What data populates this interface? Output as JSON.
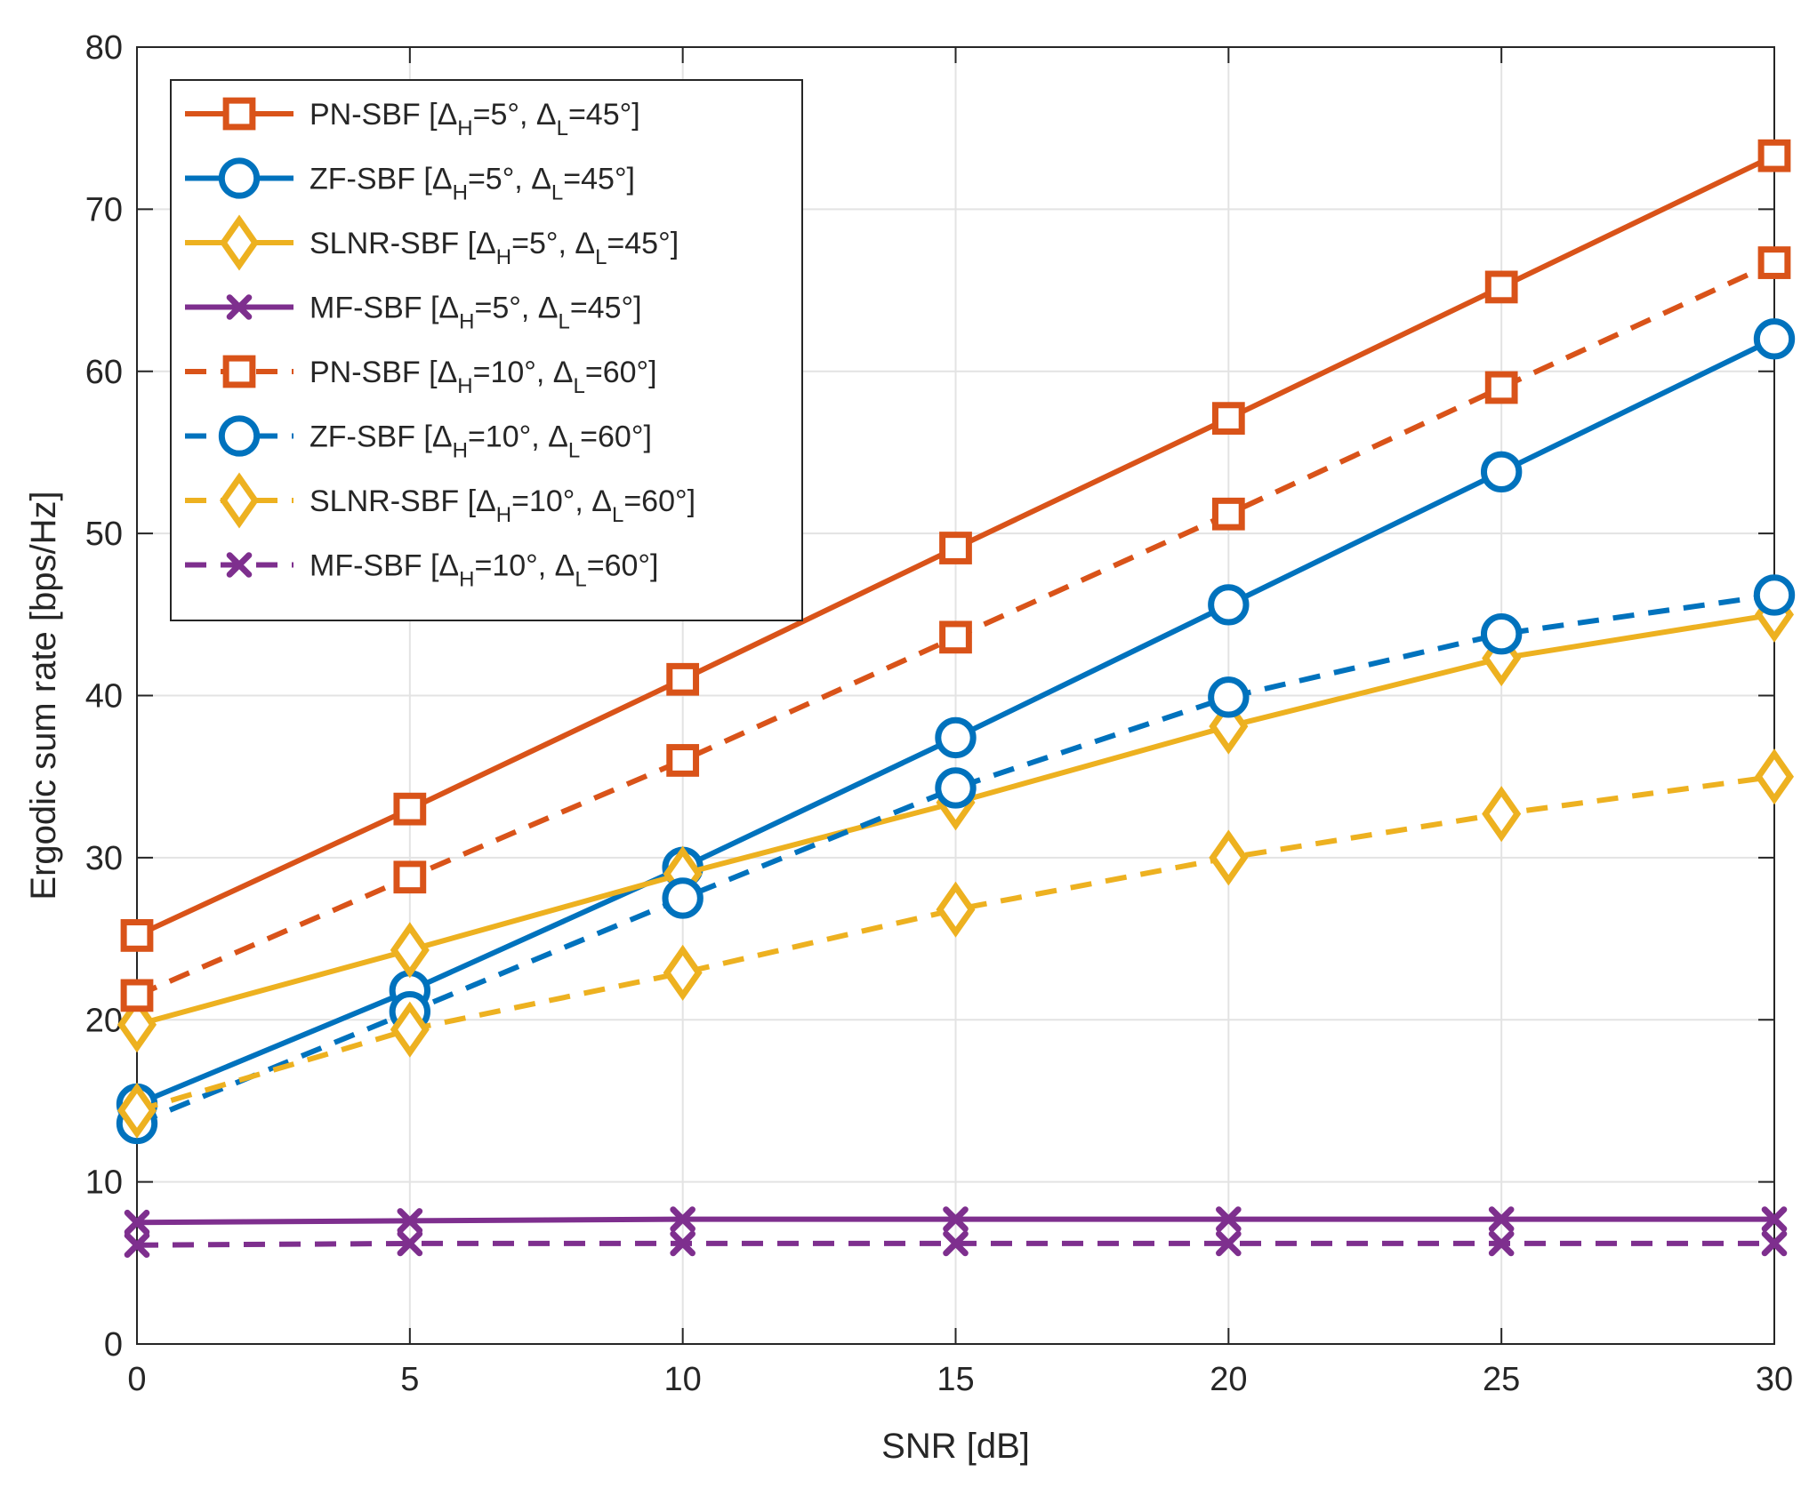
{
  "chart_data": {
    "type": "line",
    "title": "",
    "xlabel": "SNR [dB]",
    "ylabel": "Ergodic sum rate [bps/Hz]",
    "xlim": [
      0,
      30
    ],
    "ylim": [
      0,
      80
    ],
    "xticks": [
      0,
      5,
      10,
      15,
      20,
      25,
      30
    ],
    "yticks": [
      0,
      10,
      20,
      30,
      40,
      50,
      60,
      70,
      80
    ],
    "grid": true,
    "legend_position": "top-left",
    "x": [
      0,
      5,
      10,
      15,
      20,
      25,
      30
    ],
    "series": [
      {
        "name": "PN-SBF [ΔH=5°, ΔL=45°]",
        "legend": {
          "pre": "PN-SBF [",
          "h": "=5°, ",
          "l": "=45°]"
        },
        "color": "#D95319",
        "dash": "solid",
        "marker": "square",
        "values": [
          25.2,
          33.0,
          41.0,
          49.1,
          57.1,
          65.2,
          73.3
        ]
      },
      {
        "name": "ZF-SBF [ΔH=5°, ΔL=45°]",
        "legend": {
          "pre": "ZF-SBF [",
          "h": "=5°, ",
          "l": "=45°]"
        },
        "color": "#0072BD",
        "dash": "solid",
        "marker": "circle",
        "values": [
          14.8,
          21.8,
          29.4,
          37.4,
          45.6,
          53.8,
          62.0
        ]
      },
      {
        "name": "SLNR-SBF [ΔH=5°, ΔL=45°]",
        "legend": {
          "pre": "SLNR-SBF [",
          "h": "=5°, ",
          "l": "=45°]"
        },
        "color": "#EDB120",
        "dash": "solid",
        "marker": "diamond",
        "values": [
          19.7,
          24.3,
          29.0,
          33.4,
          38.1,
          42.3,
          45.0
        ]
      },
      {
        "name": "MF-SBF [ΔH=5°, ΔL=45°]",
        "legend": {
          "pre": "MF-SBF [",
          "h": "=5°, ",
          "l": "=45°]"
        },
        "color": "#7E2F8E",
        "dash": "solid",
        "marker": "x",
        "values": [
          7.5,
          7.6,
          7.7,
          7.7,
          7.7,
          7.7,
          7.7
        ]
      },
      {
        "name": "PN-SBF [ΔH=10°, ΔL=60°]",
        "legend": {
          "pre": "PN-SBF [",
          "h": "=10°, ",
          "l": "=60°]"
        },
        "color": "#D95319",
        "dash": "dashed",
        "marker": "square",
        "values": [
          21.5,
          28.8,
          36.0,
          43.6,
          51.2,
          59.0,
          66.7
        ]
      },
      {
        "name": "ZF-SBF [ΔH=10°, ΔL=60°]",
        "legend": {
          "pre": "ZF-SBF [",
          "h": "=10°, ",
          "l": "=60°]"
        },
        "color": "#0072BD",
        "dash": "dashed",
        "marker": "circle",
        "values": [
          13.6,
          20.5,
          27.5,
          34.3,
          39.9,
          43.8,
          46.2
        ]
      },
      {
        "name": "SLNR-SBF [ΔH=10°, ΔL=60°]",
        "legend": {
          "pre": "SLNR-SBF [",
          "h": "=10°, ",
          "l": "=60°]"
        },
        "color": "#EDB120",
        "dash": "dashed",
        "marker": "diamond",
        "values": [
          14.4,
          19.4,
          22.9,
          26.8,
          30.0,
          32.7,
          35.0
        ]
      },
      {
        "name": "MF-SBF [ΔH=10°, ΔL=60°]",
        "legend": {
          "pre": "MF-SBF [",
          "h": "=10°, ",
          "l": "=60°]"
        },
        "color": "#7E2F8E",
        "dash": "dashed",
        "marker": "x",
        "values": [
          6.1,
          6.2,
          6.2,
          6.2,
          6.2,
          6.2,
          6.2
        ]
      }
    ]
  }
}
